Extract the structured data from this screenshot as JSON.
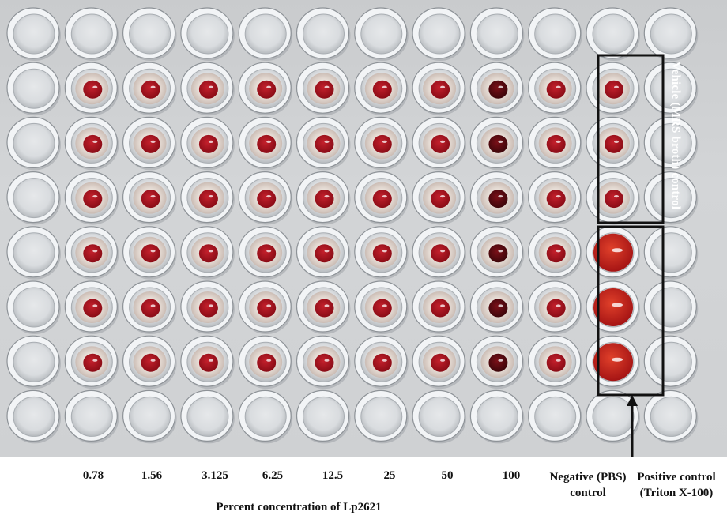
{
  "photo": {
    "columns": 12,
    "rows": 8,
    "column_concentrations": [
      "0.78",
      "1.56",
      "3.125",
      "6.25",
      "12.5",
      "25",
      "50",
      "100"
    ],
    "axis_title": "Percent concentration of Lp2621",
    "negative_control": {
      "line1": "Negative (PBS)",
      "line2": "control"
    },
    "positive_control": {
      "line1": "Positive control",
      "line2": "(Triton X-100)"
    },
    "vehicle_control": "Vehicle (MRS broth) control",
    "colors": {
      "well_rim": "#f2f4f6",
      "well_shadow": "#9ea3a8",
      "rbc_pellet": "#a0101c",
      "dark_pellet": "#5a0a10",
      "lysed_fill": "#c81e1e",
      "box_stroke": "#111111",
      "plate_background": "#cfd1d3"
    }
  }
}
